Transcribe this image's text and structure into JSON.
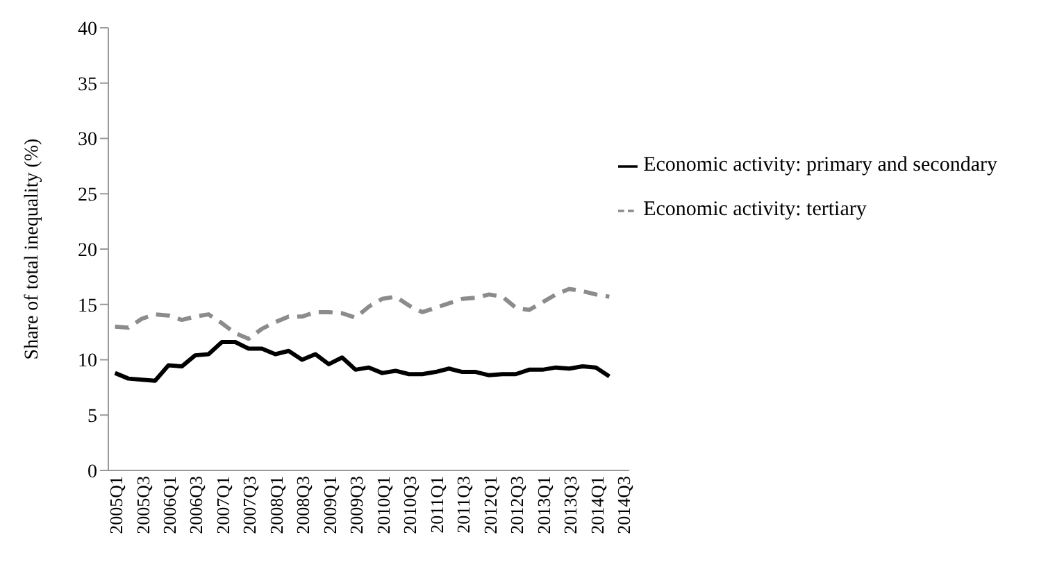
{
  "chart_data": {
    "type": "line",
    "ylabel": "Share of total inequality (%)",
    "categories": [
      "2005Q1",
      null,
      "2005Q3",
      null,
      "2006Q1",
      null,
      "2006Q3",
      null,
      "2007Q1",
      null,
      "2007Q3",
      null,
      "2008Q1",
      null,
      "2008Q3",
      null,
      "2009Q1",
      null,
      "2009Q3",
      null,
      "2010Q1",
      null,
      "2010Q3",
      null,
      "2011Q1",
      null,
      "2011Q3",
      null,
      "2012Q1",
      null,
      "2012Q3",
      null,
      "2013Q1",
      null,
      "2013Q3",
      null,
      "2014Q1",
      null,
      "2014Q3"
    ],
    "series": [
      {
        "name": "Economic activity: primary and secondary",
        "color": "#000000",
        "line_style": "solid",
        "values": [
          8.8,
          8.3,
          8.2,
          8.1,
          9.5,
          9.4,
          10.4,
          10.5,
          11.6,
          11.6,
          11.0,
          11.0,
          10.5,
          10.8,
          10.0,
          10.5,
          9.6,
          10.2,
          9.1,
          9.3,
          8.8,
          9.0,
          8.7,
          8.7,
          8.9,
          9.2,
          8.9,
          8.9,
          8.6,
          8.7,
          8.7,
          9.1,
          9.1,
          9.3,
          9.2,
          9.4,
          9.3,
          8.5,
          null
        ]
      },
      {
        "name": "Economic activity: tertiary",
        "color": "#8c8c8c",
        "line_style": "dashed",
        "values": [
          13.0,
          12.9,
          13.7,
          14.1,
          14.0,
          13.6,
          13.9,
          14.1,
          13.3,
          12.4,
          11.9,
          12.8,
          13.4,
          13.9,
          13.9,
          14.3,
          14.3,
          14.2,
          13.8,
          14.8,
          15.5,
          15.7,
          14.9,
          14.3,
          14.7,
          15.1,
          15.5,
          15.6,
          15.9,
          15.7,
          14.7,
          14.5,
          15.2,
          15.9,
          16.4,
          16.2,
          15.9,
          15.7,
          null
        ]
      }
    ],
    "ylim": [
      0,
      40
    ],
    "yticks": [
      0,
      5,
      10,
      15,
      20,
      25,
      30,
      35,
      40
    ],
    "grid": false,
    "legend": "top right",
    "marker": "none"
  }
}
